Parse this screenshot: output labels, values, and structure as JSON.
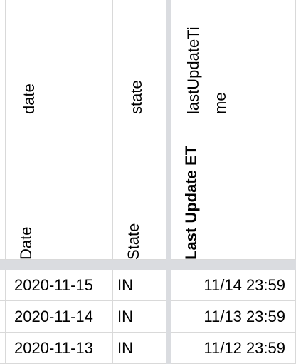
{
  "header_row_1": {
    "date": "date",
    "state": "state",
    "last_update_line1": "lastUpdateTi",
    "last_update_line2": "me"
  },
  "header_row_2": {
    "date": "Date",
    "state": "State",
    "last_update": "Last Update ET"
  },
  "rows": [
    {
      "date": "2020-11-15",
      "state": "IN",
      "last_update": "11/14 23:59"
    },
    {
      "date": "2020-11-14",
      "state": "IN",
      "last_update": "11/13 23:59"
    },
    {
      "date": "2020-11-13",
      "state": "IN",
      "last_update": "11/12 23:59"
    }
  ]
}
